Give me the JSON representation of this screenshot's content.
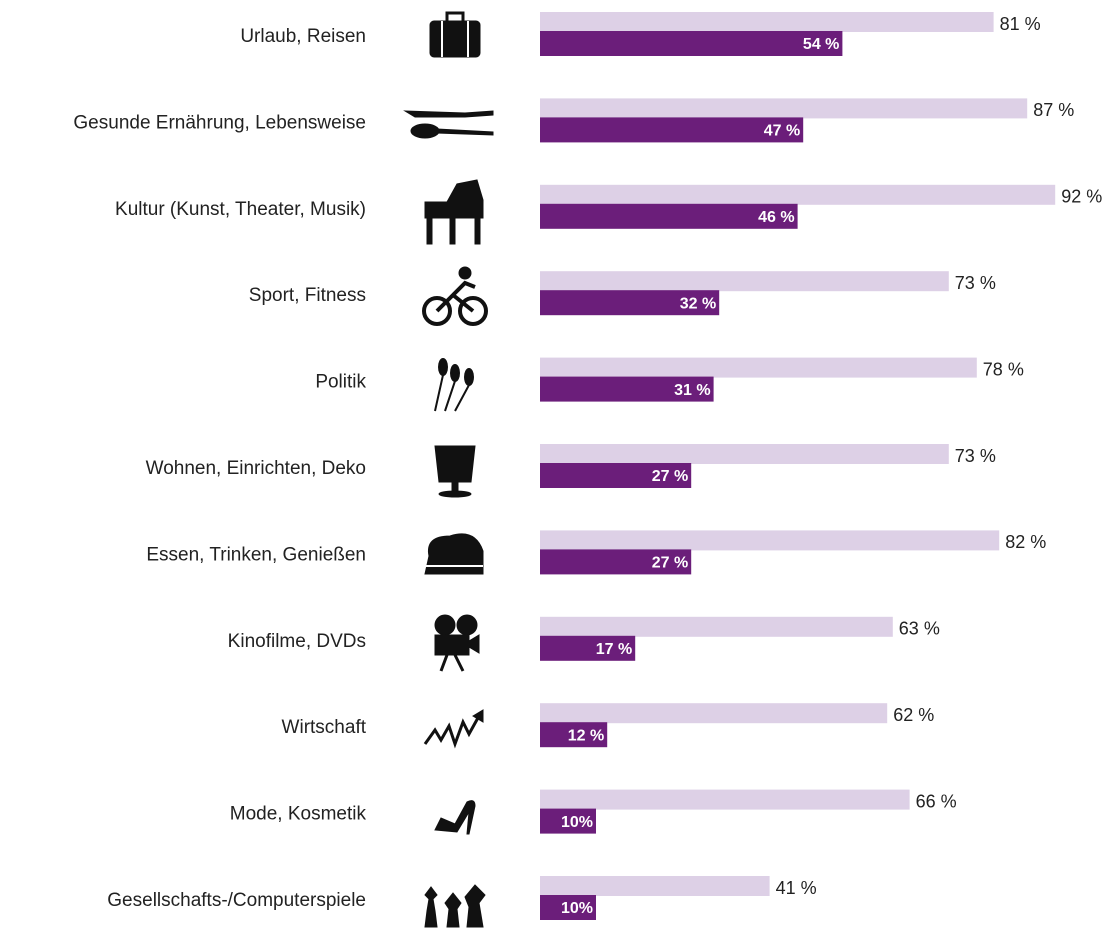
{
  "chart_data": {
    "type": "bar",
    "orientation": "horizontal",
    "categories": [
      "Urlaub, Reisen",
      "Gesunde Ernährung, Lebensweise",
      "Kultur (Kunst, Theater, Musik)",
      "Sport, Fitness",
      "Politik",
      "Wohnen, Einrichten, Deko",
      "Essen, Trinken, Genießen",
      "Kinofilme, DVDs",
      "Wirtschaft",
      "Mode, Kosmetik",
      "Gesellschafts-/Computerspiele"
    ],
    "series": [
      {
        "color": "#ddd0e6",
        "values": [
          81,
          87,
          92,
          73,
          78,
          73,
          82,
          63,
          62,
          66,
          41
        ],
        "value_labels": [
          "81 %",
          "87 %",
          "92 %",
          "73 %",
          "78 %",
          "73 %",
          "82 %",
          "63 %",
          "62 %",
          "66 %",
          "41 %"
        ]
      },
      {
        "color": "#6b1e7a",
        "values": [
          54,
          47,
          46,
          32,
          31,
          27,
          27,
          17,
          12,
          10,
          10
        ],
        "value_labels": [
          "54 %",
          "47 %",
          "46 %",
          "32 %",
          "31 %",
          "27 %",
          "27 %",
          "17 %",
          "12 %",
          "10%",
          "10%"
        ]
      }
    ],
    "xlim": [
      0,
      100
    ]
  }
}
